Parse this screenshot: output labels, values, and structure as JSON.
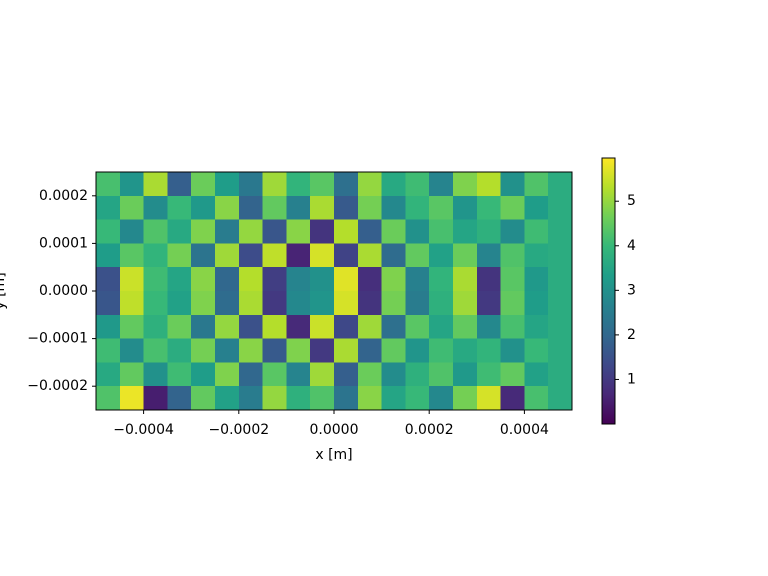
{
  "chart_data": {
    "type": "heatmap",
    "colormap": "viridis",
    "xlabel": "x [m]",
    "ylabel": "y [m]",
    "xlim": [
      -0.0005,
      0.0005
    ],
    "ylim": [
      -0.00025,
      0.00025
    ],
    "xticks": [
      {
        "value": -0.0004,
        "label": "−0.0004"
      },
      {
        "value": -0.0002,
        "label": "−0.0002"
      },
      {
        "value": 0,
        "label": "0.0000"
      },
      {
        "value": 0.0002,
        "label": "0.0002"
      },
      {
        "value": 0.0004,
        "label": "0.0004"
      }
    ],
    "yticks": [
      {
        "value": -0.0002,
        "label": "−0.0002"
      },
      {
        "value": -0.0001,
        "label": "−0.0001"
      },
      {
        "value": 0,
        "label": "0.0000"
      },
      {
        "value": 0.0001,
        "label": "0.0001"
      },
      {
        "value": 0.0002,
        "label": "0.0002"
      }
    ],
    "clim": [
      0,
      5.97
    ],
    "cticks": [
      1,
      2,
      3,
      4,
      5
    ],
    "z": [
      [
        4.2,
        3.1,
        5.2,
        1.8,
        4.6,
        3.3,
        2.4,
        5.1,
        3.9,
        4.4,
        2.2,
        5.0,
        3.6,
        4.1,
        2.7,
        4.8,
        5.3,
        3.0,
        4.3,
        3.7
      ],
      [
        3.5,
        4.6,
        2.9,
        4.0,
        3.2,
        4.9,
        1.9,
        4.5,
        2.6,
        5.2,
        1.7,
        4.7,
        2.8,
        3.9,
        4.4,
        3.1,
        4.0,
        4.6,
        3.3,
        3.7
      ],
      [
        4.0,
        2.8,
        4.3,
        3.6,
        4.8,
        2.5,
        5.0,
        1.6,
        4.9,
        0.9,
        5.3,
        1.8,
        4.6,
        3.0,
        4.2,
        3.5,
        3.8,
        2.9,
        4.1,
        3.7
      ],
      [
        3.3,
        4.4,
        3.9,
        4.7,
        2.3,
        5.1,
        1.4,
        5.4,
        0.6,
        5.6,
        1.2,
        5.2,
        2.1,
        4.5,
        3.4,
        4.6,
        2.7,
        4.3,
        3.6,
        3.7
      ],
      [
        1.5,
        5.5,
        4.1,
        3.5,
        4.9,
        2.0,
        5.3,
        1.1,
        2.7,
        3.0,
        5.7,
        0.8,
        4.8,
        2.6,
        3.9,
        5.2,
        0.9,
        4.4,
        3.2,
        3.7
      ],
      [
        1.6,
        5.4,
        4.0,
        3.4,
        4.8,
        2.1,
        5.2,
        1.0,
        2.8,
        3.1,
        5.6,
        0.9,
        4.7,
        2.5,
        3.8,
        5.1,
        1.0,
        4.5,
        3.3,
        3.7
      ],
      [
        3.2,
        4.5,
        3.8,
        4.6,
        2.4,
        5.0,
        1.5,
        5.3,
        0.7,
        5.5,
        1.3,
        5.1,
        2.2,
        4.4,
        3.5,
        4.5,
        2.8,
        4.2,
        3.5,
        3.7
      ],
      [
        4.1,
        2.9,
        4.2,
        3.7,
        4.7,
        2.6,
        4.9,
        1.7,
        4.8,
        1.0,
        5.2,
        1.9,
        4.5,
        3.1,
        4.1,
        3.6,
        3.9,
        3.0,
        4.0,
        3.7
      ],
      [
        3.6,
        4.5,
        3.0,
        4.1,
        3.3,
        4.8,
        2.0,
        4.4,
        2.7,
        5.1,
        1.8,
        4.6,
        2.9,
        3.8,
        4.3,
        3.2,
        4.1,
        4.5,
        3.4,
        3.7
      ],
      [
        4.3,
        5.8,
        0.5,
        1.9,
        4.5,
        3.4,
        2.5,
        5.0,
        3.8,
        4.3,
        2.3,
        4.9,
        3.5,
        4.0,
        2.8,
        4.7,
        5.6,
        0.7,
        4.2,
        3.7
      ]
    ]
  }
}
